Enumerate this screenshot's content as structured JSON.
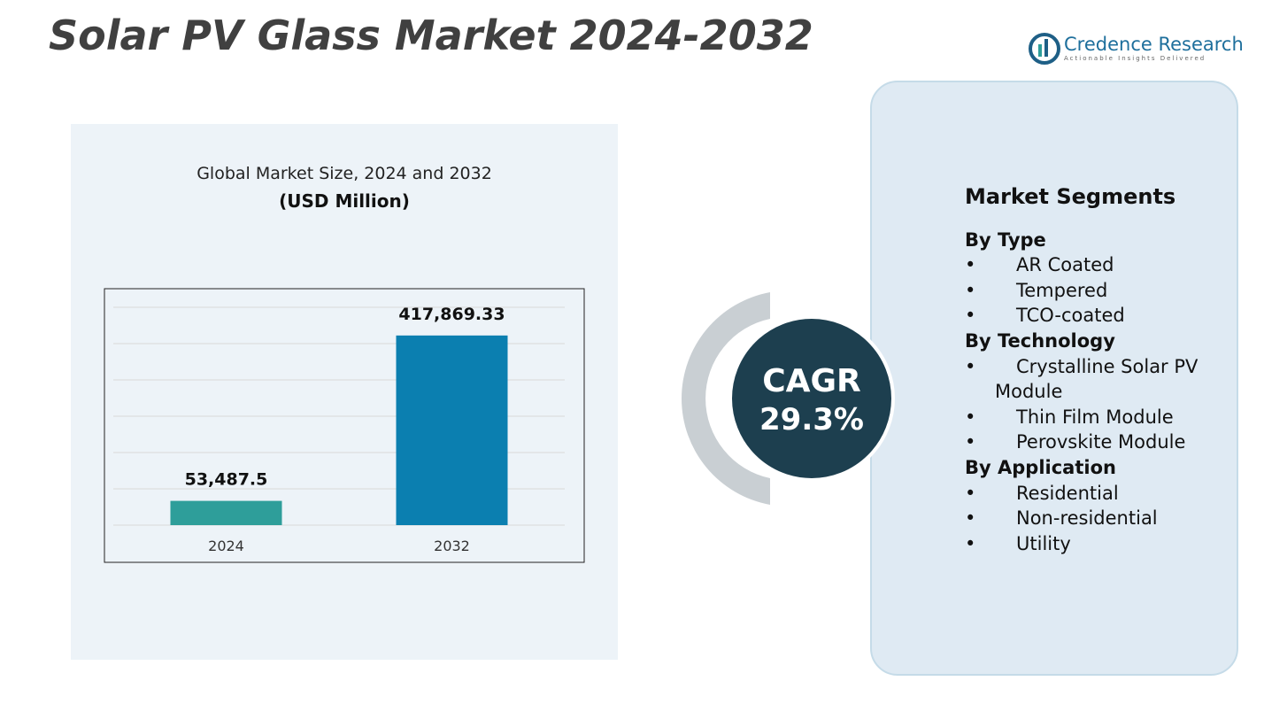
{
  "header": {
    "title": "Solar PV Glass Market  2024-2032",
    "brand": "Credence Research",
    "tagline": "Actionable Insights Delivered"
  },
  "chart_data": {
    "type": "bar",
    "title": "Global Market Size, 2024 and 2032",
    "subtitle": "(USD Million)",
    "categories": [
      "2024",
      "2032"
    ],
    "values": [
      53487.5,
      417869.33
    ],
    "value_labels": [
      "53,487.5",
      "417,869.33"
    ],
    "colors": [
      "#2e9e9a",
      "#0b7fb0"
    ],
    "ylim": [
      0,
      480000
    ],
    "yticks": [
      0,
      80000,
      160000,
      240000,
      320000,
      400000,
      480000
    ],
    "grid": true
  },
  "cagr": {
    "label": "CAGR",
    "value": "29.3%"
  },
  "segments": {
    "title": "Market Segments",
    "groups": [
      {
        "name": "By Type",
        "items": [
          "AR Coated",
          "Tempered",
          "TCO-coated"
        ]
      },
      {
        "name": "By Technology",
        "items": [
          "Crystalline Solar PV Module",
          "Thin Film Module",
          "Perovskite Module"
        ]
      },
      {
        "name": "By Application",
        "items": [
          "Residential",
          "Non-residential",
          "Utility"
        ]
      }
    ]
  }
}
